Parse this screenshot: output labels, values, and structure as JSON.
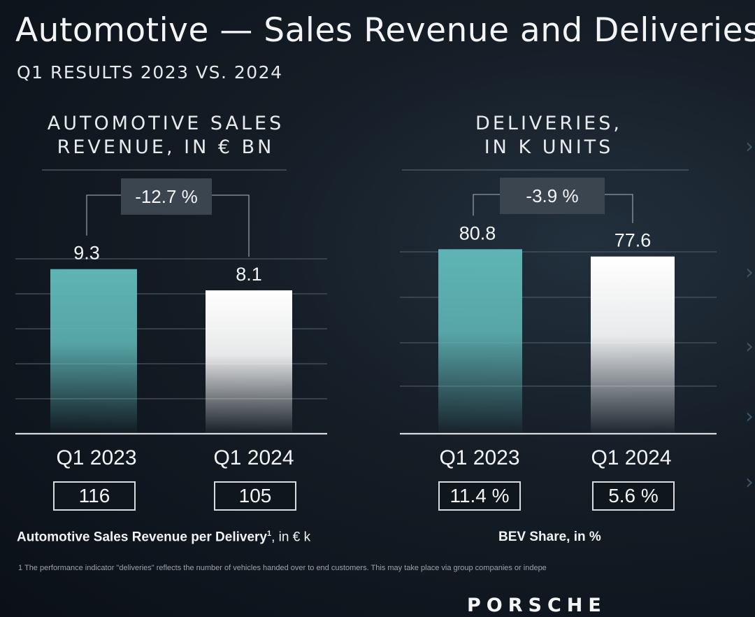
{
  "title": "Automotive — Sales Revenue and Deliveries",
  "subtitle": "Q1 RESULTS 2023 VS. 2024",
  "colors": {
    "bar_2023": "#5eb4b4",
    "bar_2024": "#ffffff",
    "grid": "#4a5560",
    "axis": "#d6dade",
    "change_box": "#3b4550"
  },
  "chart_data": [
    {
      "type": "bar",
      "title_lines": [
        "AUTOMOTIVE SALES",
        "REVENUE, IN € BN"
      ],
      "categories": [
        "Q1 2023",
        "Q1 2024"
      ],
      "values": [
        9.3,
        8.1
      ],
      "value_labels": [
        "9.3",
        "8.1"
      ],
      "change_label": "-12.7 %",
      "ylim": [
        0,
        10
      ],
      "grid": true,
      "kpi_values": [
        "116",
        "105"
      ],
      "kpi_label": "Automotive Sales Revenue per Delivery",
      "kpi_label_sup": "1",
      "kpi_label_suffix": ", in € k"
    },
    {
      "type": "bar",
      "title_lines": [
        "DELIVERIES,",
        "IN K UNITS"
      ],
      "categories": [
        "Q1 2023",
        "Q1 2024"
      ],
      "values": [
        80.8,
        77.6
      ],
      "value_labels": [
        "80.8",
        "77.6"
      ],
      "change_label": "-3.9 %",
      "ylim": [
        0,
        85
      ],
      "grid": true,
      "kpi_values": [
        "11.4 %",
        "5.6 %"
      ],
      "kpi_label": "BEV Share, in %"
    }
  ],
  "footnote": "1 The performance indicator \"deliveries\" reflects the number of vehicles handed over to end customers. This may take place via group companies or indepe",
  "brand_logo": "PORSCHE",
  "edge_icon": "chevron-right-icon"
}
